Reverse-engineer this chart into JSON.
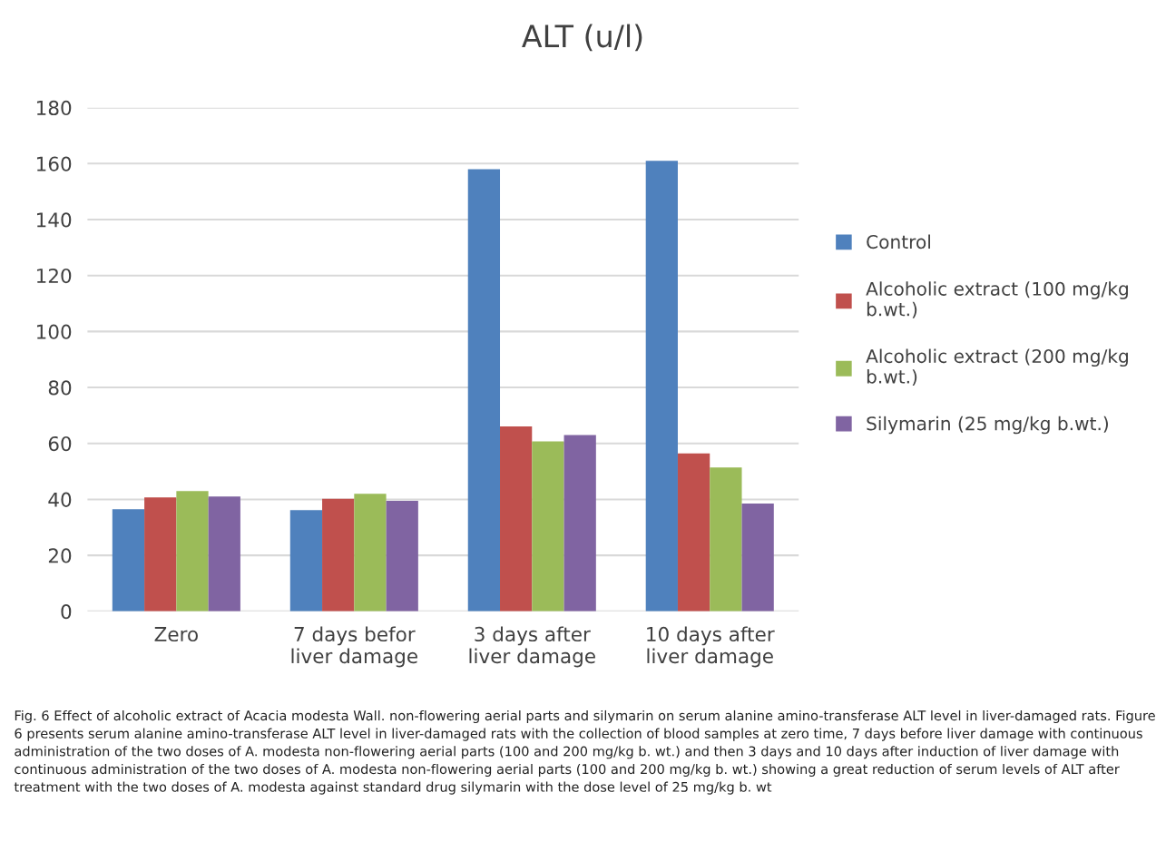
{
  "chart_data": {
    "type": "bar",
    "title": "ALT (u/l)",
    "categories": [
      "Zero",
      "7 days befor\nliver damage",
      "3 days after\nliver damage",
      "10 days after\nliver damage"
    ],
    "series": [
      {
        "name": "Control",
        "color": "#4f81bd",
        "values": [
          36.5,
          36.2,
          158,
          161
        ]
      },
      {
        "name": "Alcoholic extract (100 mg/kg\nb.wt.)",
        "color": "#c0504d",
        "values": [
          40.7,
          40.2,
          66.1,
          56.4
        ]
      },
      {
        "name": "Alcoholic extract (200 mg/kg\nb.wt.)",
        "color": "#9bbb59",
        "values": [
          43.0,
          42.0,
          60.7,
          51.4
        ]
      },
      {
        "name": "Silymarin (25 mg/kg b.wt.)",
        "color": "#8064a2",
        "values": [
          41.0,
          39.5,
          63.0,
          38.5
        ]
      }
    ],
    "ylim": [
      0,
      180
    ],
    "yticks": [
      0,
      20,
      40,
      60,
      80,
      100,
      120,
      140,
      160,
      180
    ],
    "grid": "y",
    "legend": "right",
    "annotations": [
      "Fig. 6 Effect of alcoholic extract of Acacia modesta Wall. non-flowering aerial parts and silymarin on serum alanine amino-transferase ALT level in liver-damaged rats. Figure 6 presents serum alanine amino-transferase ALT level in liver-damaged rats with the collection of blood samples at zero time, 7 days before liver damage with continuous administration of the two doses of A. modesta non-flowering aerial parts (100 and 200 mg/kg b. wt.) and then 3 days and 10 days after induction of liver damage with continuous administration of the two doses of A. modesta non-flowering aerial parts (100 and 200 mg/kg b. wt.) showing a great reduction of serum levels of ALT after treatment with the two doses of A. modesta against standard drug silymarin with the dose level of 25 mg/kg b. wt"
    ]
  }
}
